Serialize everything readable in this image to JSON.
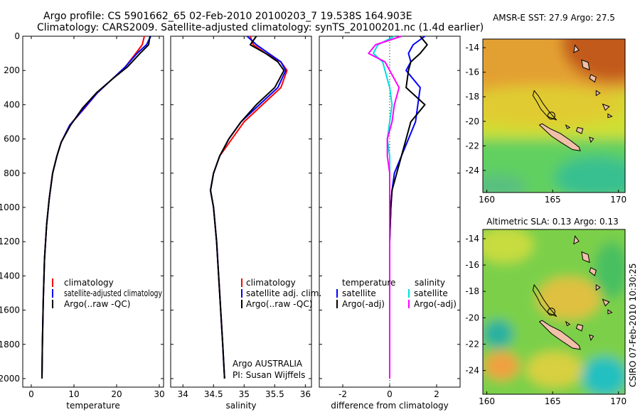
{
  "header": {
    "line1": "Argo profile: CS 5901662_65 02-Feb-2010 20100203_7 19.538S 164.903E",
    "line2": "Climatology: CARS2009. Satellite-adjusted climatology: synTS_20100201.nc (1.4d earlier)"
  },
  "credit": "CSIRO 07-Feb-2010 10:30:25",
  "chart_data": [
    {
      "type": "line",
      "id": "temperature",
      "xlabel": "temperature",
      "ylabel": "",
      "xlim": [
        -2,
        31
      ],
      "ylim": [
        2050,
        0
      ],
      "xticks": [
        0,
        10,
        20,
        30
      ],
      "yticks": [
        0,
        200,
        400,
        600,
        800,
        1000,
        1200,
        1400,
        1600,
        1800,
        2000
      ],
      "legend": [
        "climatology",
        "satellite-adjusted climatology",
        "Argo(..raw -QC)"
      ],
      "series": [
        {
          "name": "climatology",
          "color": "#ff0000",
          "x": [
            26.5,
            26.0,
            24.5,
            22.0,
            19.0,
            15.5,
            12.5,
            9.0,
            7.0,
            6.0,
            5.0,
            4.2,
            3.6,
            3.1,
            2.8,
            2.6,
            2.5
          ],
          "y": [
            0,
            50,
            100,
            180,
            250,
            330,
            420,
            520,
            620,
            700,
            800,
            950,
            1100,
            1300,
            1550,
            1800,
            2000
          ]
        },
        {
          "name": "satellite-adjusted climatology",
          "color": "#0000ff",
          "x": [
            28.0,
            27.0,
            24.8,
            22.0,
            19.0,
            15.5,
            12.4,
            9.0,
            7.0,
            6.0,
            5.0,
            4.2,
            3.6,
            3.1,
            2.8,
            2.6,
            2.5
          ],
          "y": [
            0,
            50,
            100,
            180,
            250,
            330,
            420,
            520,
            620,
            700,
            800,
            950,
            1100,
            1300,
            1550,
            1800,
            2000
          ]
        },
        {
          "name": "Argo(..raw -QC)",
          "color": "#000000",
          "x": [
            27.8,
            27.5,
            25.5,
            22.5,
            19.0,
            15.3,
            12.0,
            9.2,
            7.0,
            6.0,
            5.0,
            4.2,
            3.6,
            3.1,
            2.8,
            2.6,
            2.5
          ],
          "y": [
            0,
            50,
            100,
            180,
            250,
            330,
            420,
            520,
            620,
            700,
            800,
            950,
            1100,
            1300,
            1550,
            1800,
            2000
          ]
        }
      ]
    },
    {
      "type": "line",
      "id": "salinity",
      "xlabel": "salinity",
      "xlim": [
        33.8,
        36.1
      ],
      "ylim": [
        2050,
        0
      ],
      "xticks": [
        34,
        34.5,
        35,
        35.5,
        36
      ],
      "legend": [
        "climatology",
        "satellite adj. clim.",
        "Argo(..raw -QC)"
      ],
      "annotation": [
        "Argo AUSTRALIA",
        "PI: Susan Wijffels"
      ],
      "series": [
        {
          "name": "climatology",
          "color": "#ff0000",
          "x": [
            35.1,
            35.15,
            35.35,
            35.6,
            35.7,
            35.6,
            35.3,
            35.0,
            34.8,
            34.6,
            34.5,
            34.45,
            34.5,
            34.55,
            34.6,
            34.65,
            34.68
          ],
          "y": [
            0,
            50,
            100,
            150,
            200,
            300,
            400,
            500,
            600,
            700,
            800,
            900,
            1000,
            1200,
            1500,
            1800,
            2000
          ]
        },
        {
          "name": "satellite adj. clim.",
          "color": "#0000ff",
          "x": [
            35.05,
            35.2,
            35.4,
            35.6,
            35.68,
            35.55,
            35.25,
            34.95,
            34.75,
            34.6,
            34.5,
            34.45,
            34.5,
            34.55,
            34.6,
            34.65,
            34.68
          ],
          "y": [
            0,
            50,
            100,
            150,
            200,
            300,
            400,
            500,
            600,
            700,
            800,
            900,
            1000,
            1200,
            1500,
            1800,
            2000
          ]
        },
        {
          "name": "Argo(..raw -QC)",
          "color": "#000000",
          "x": [
            35.2,
            35.1,
            35.35,
            35.55,
            35.65,
            35.5,
            35.2,
            34.95,
            34.75,
            34.6,
            34.5,
            34.45,
            34.5,
            34.55,
            34.6,
            34.65,
            34.68
          ],
          "y": [
            0,
            50,
            100,
            150,
            200,
            300,
            400,
            500,
            600,
            700,
            800,
            900,
            1000,
            1200,
            1500,
            1800,
            2000
          ]
        }
      ]
    },
    {
      "type": "line",
      "id": "difference",
      "xlabel": "difference from climatology",
      "xlim": [
        -3,
        3
      ],
      "ylim": [
        2050,
        0
      ],
      "xticks": [
        -2,
        0,
        2
      ],
      "legend_headers": [
        "temperature",
        "salinity"
      ],
      "legend": [
        [
          "satellite",
          "Argo(-adj)"
        ],
        [
          "satellite",
          "Argo(-adj)"
        ]
      ],
      "series": [
        {
          "name": "temperature satellite",
          "color": "#0000ff",
          "x": [
            1.5,
            1.0,
            0.8,
            0.9,
            0.7,
            1.3,
            1.2,
            1.1,
            0.8,
            0.5,
            0.2,
            0.1,
            0.05,
            0,
            0,
            0,
            0
          ],
          "y": [
            0,
            50,
            100,
            150,
            200,
            300,
            400,
            500,
            600,
            700,
            800,
            900,
            1000,
            1200,
            1500,
            1800,
            2000
          ]
        },
        {
          "name": "temperature Argo(-adj)",
          "color": "#000000",
          "x": [
            1.3,
            1.6,
            1.3,
            0.9,
            0.8,
            0.7,
            1.5,
            0.9,
            0.7,
            0.5,
            0.3,
            0.1,
            0.05,
            0,
            0,
            0,
            0
          ],
          "y": [
            0,
            50,
            100,
            150,
            200,
            300,
            400,
            500,
            600,
            700,
            800,
            900,
            1000,
            1200,
            1500,
            1800,
            2000
          ]
        },
        {
          "name": "salinity satellite",
          "color": "#00dddd",
          "x": [
            0.2,
            -0.5,
            -0.7,
            -0.3,
            -0.2,
            0,
            0.1,
            0,
            -0.1,
            0,
            0,
            0,
            0,
            0,
            0,
            0,
            0
          ],
          "y": [
            0,
            50,
            100,
            150,
            200,
            300,
            400,
            500,
            600,
            700,
            800,
            900,
            1000,
            1200,
            1500,
            1800,
            2000
          ]
        },
        {
          "name": "salinity Argo(-adj)",
          "color": "#ff00ff",
          "x": [
            0.5,
            -0.6,
            -0.9,
            -0.2,
            0,
            0.4,
            0.2,
            0.1,
            -0.1,
            -0.1,
            0,
            0,
            0,
            0,
            0,
            0,
            0
          ],
          "y": [
            0,
            50,
            100,
            150,
            200,
            300,
            400,
            500,
            600,
            700,
            800,
            900,
            1000,
            1200,
            1500,
            1800,
            2000
          ]
        }
      ]
    },
    {
      "type": "heatmap",
      "id": "sst-map",
      "title": "AMSR-E SST: 27.9 Argo: 27.5",
      "xlim": [
        159.7,
        170.5
      ],
      "ylim": [
        -25.8,
        -13.3
      ],
      "xticks": [
        160,
        165,
        170
      ],
      "yticks": [
        -14,
        -16,
        -18,
        -20,
        -22,
        -24
      ],
      "argo_position": [
        164.903,
        -19.538
      ]
    },
    {
      "type": "heatmap",
      "id": "sla-map",
      "title": "Altimetric SLA: 0.13 Argo: 0.13",
      "xlim": [
        159.7,
        170.5
      ],
      "ylim": [
        -25.8,
        -13.3
      ],
      "xticks": [
        160,
        165,
        170
      ],
      "yticks": [
        -14,
        -16,
        -18,
        -20,
        -22,
        -24
      ],
      "argo_position": [
        164.903,
        -19.538
      ]
    }
  ]
}
